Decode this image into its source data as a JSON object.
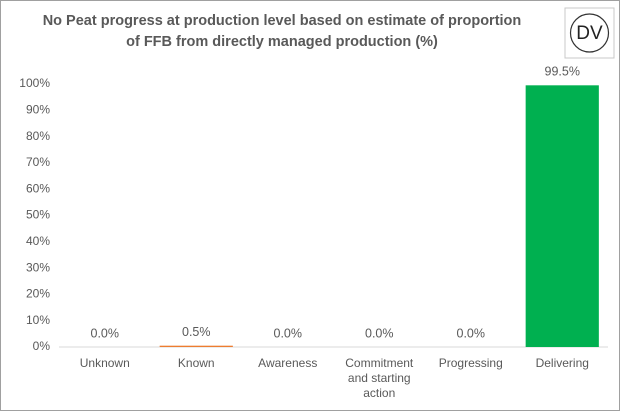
{
  "chart_data": {
    "type": "bar",
    "title": [
      "No Peat progress at production level based on estimate of proportion",
      "of FFB from directly managed production (%)"
    ],
    "badge": "DV",
    "categories": [
      "Unknown",
      "Known",
      "Awareness",
      "Commitment and starting action",
      "Progressing",
      "Delivering"
    ],
    "values": [
      0,
      0.5,
      0,
      0,
      0,
      99.5
    ],
    "value_labels": [
      "0.0%",
      "0.5%",
      "0.0%",
      "0.0%",
      "0.0%",
      "99.5%"
    ],
    "colors": [
      "#4472c4",
      "#ed7d31",
      "#a5a5a5",
      "#ffc000",
      "#5b9bd5",
      "#00b050"
    ],
    "ylim": [
      0,
      100
    ],
    "yticks": [
      {
        "value": 0,
        "label": "0%"
      },
      {
        "value": 10,
        "label": "10%"
      },
      {
        "value": 20,
        "label": "20%"
      },
      {
        "value": 30,
        "label": "30%"
      },
      {
        "value": 40,
        "label": "40%"
      },
      {
        "value": 50,
        "label": "50%"
      },
      {
        "value": 60,
        "label": "60%"
      },
      {
        "value": 70,
        "label": "70%"
      },
      {
        "value": 80,
        "label": "80%"
      },
      {
        "value": 90,
        "label": "90%"
      },
      {
        "value": 100,
        "label": "100%"
      }
    ],
    "grid": false
  }
}
